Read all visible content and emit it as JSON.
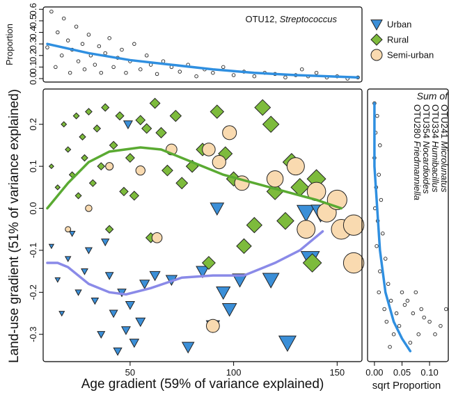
{
  "chart_data": [
    {
      "type": "scatter",
      "annotation": {
        "id": "OTU12,",
        "genus": "Streptococcus"
      },
      "ylabel": "Proportion",
      "xlim": [
        8,
        162
      ],
      "ylim": [
        -0.03,
        0.62
      ],
      "yticks": [
        {
          "value": 0,
          "label": "0.0"
        },
        0.1,
        0.2,
        0.3,
        0.4,
        0.5,
        0.6
      ],
      "series": [
        {
          "marker": "circle",
          "color": "#ffffff",
          "x": [
            10,
            12,
            14,
            15,
            17,
            18,
            20,
            21,
            22,
            24,
            25,
            27,
            28,
            30,
            31,
            33,
            35,
            36,
            38,
            40,
            42,
            44,
            46,
            48,
            50,
            52,
            55,
            58,
            60,
            63,
            66,
            70,
            74,
            78,
            82,
            86,
            90,
            95,
            100,
            105,
            110,
            115,
            120,
            125,
            130,
            133,
            136,
            140,
            145,
            150,
            155,
            160
          ],
          "values": [
            0.27,
            0.58,
            0.1,
            0.4,
            0.2,
            0.52,
            0.33,
            0.05,
            0.25,
            0.45,
            0.15,
            0.3,
            0.08,
            0.38,
            0.2,
            0.12,
            0.28,
            0.05,
            0.22,
            0.35,
            0.1,
            0.18,
            0.25,
            0.05,
            0.15,
            0.3,
            0.08,
            0.2,
            0.12,
            0.04,
            0.15,
            0.1,
            0.06,
            0.12,
            0.02,
            0.08,
            0.05,
            0.1,
            0.03,
            0.06,
            0.02,
            0.05,
            0.04,
            0.01,
            0.03,
            0.08,
            0.02,
            0.05,
            0.01,
            0.02,
            0.0,
            0.01
          ]
        }
      ],
      "lines": [
        {
          "color": "#2f8fe0",
          "x": [
            10,
            30,
            50,
            70,
            90,
            110,
            130,
            160
          ],
          "values": [
            0.3,
            0.22,
            0.16,
            0.12,
            0.08,
            0.05,
            0.03,
            0.01
          ]
        }
      ]
    },
    {
      "type": "scatter",
      "xlabel": "Age gradient (59% of variance explained)",
      "ylabel": "Land-use gradient (51% of variance explained)",
      "xlim": [
        8,
        162
      ],
      "ylim": [
        -0.365,
        0.284
      ],
      "xticks": [
        50,
        100,
        150
      ],
      "yticks": [
        -0.3,
        -0.2,
        -0.1,
        {
          "value": 0,
          "label": "0.0"
        },
        0.1,
        0.2
      ],
      "series": [
        {
          "name": "Urban",
          "marker": "triangle",
          "color": "#3b8fd8",
          "x": [
            12,
            15,
            17,
            20,
            22,
            25,
            28,
            30,
            33,
            36,
            38,
            40,
            42,
            44,
            46,
            48,
            50,
            52,
            55,
            57,
            62,
            70,
            78,
            85,
            90,
            95,
            98,
            103,
            92,
            118,
            126,
            135,
            142,
            137,
            49
          ],
          "values": [
            -0.09,
            -0.17,
            -0.25,
            -0.12,
            -0.06,
            -0.2,
            -0.15,
            -0.1,
            -0.22,
            -0.3,
            -0.08,
            -0.16,
            -0.25,
            -0.34,
            -0.2,
            -0.29,
            -0.23,
            -0.32,
            -0.27,
            -0.18,
            -0.16,
            -0.17,
            -0.33,
            -0.15,
            -0.28,
            -0.2,
            -0.24,
            -0.17,
            0.0,
            -0.17,
            -0.32,
            -0.01,
            -0.01,
            -0.12,
            0.2
          ]
        },
        {
          "name": "Rural",
          "marker": "diamond",
          "color": "#7dbb3c",
          "x": [
            12,
            15,
            18,
            20,
            22,
            24,
            25,
            27,
            28,
            30,
            32,
            34,
            36,
            38,
            40,
            42,
            45,
            47,
            50,
            52,
            55,
            58,
            60,
            62,
            65,
            68,
            72,
            75,
            80,
            85,
            88,
            92,
            96,
            100,
            105,
            110,
            114,
            118,
            120,
            125,
            128,
            132,
            135,
            138,
            140
          ],
          "values": [
            0.1,
            0.05,
            0.2,
            0.14,
            0.08,
            0.22,
            0.03,
            0.17,
            0.12,
            0.23,
            0.06,
            0.19,
            0.1,
            0.24,
            -0.05,
            0.15,
            0.22,
            0.04,
            0.12,
            0.03,
            0.21,
            0.19,
            -0.07,
            0.25,
            0.18,
            0.09,
            0.22,
            0.06,
            0.1,
            0.14,
            -0.13,
            0.23,
            0.13,
            0.07,
            -0.09,
            -0.04,
            0.24,
            0.2,
            0.04,
            -0.03,
            0.11,
            0.05,
            -0.05,
            -0.13,
            0.07
          ]
        },
        {
          "name": "Semi-urban",
          "marker": "circle",
          "color": "#f9dab0",
          "x": [
            20,
            30,
            40,
            55,
            63,
            70,
            88,
            90,
            93,
            98,
            104,
            120,
            130,
            135,
            140,
            145,
            150,
            152,
            158,
            158
          ],
          "values": [
            -0.05,
            0.0,
            0.1,
            0.09,
            -0.07,
            0.14,
            0.14,
            -0.28,
            0.11,
            0.18,
            0.06,
            0.07,
            0.1,
            -0.05,
            0.04,
            -0.01,
            0.02,
            -0.05,
            -0.04,
            -0.13
          ]
        }
      ],
      "lines": [
        {
          "color": "#5aaa32",
          "x": [
            10,
            20,
            30,
            40,
            55,
            65,
            80,
            95,
            110,
            125,
            140,
            152
          ],
          "values": [
            0.0,
            0.06,
            0.11,
            0.135,
            0.145,
            0.14,
            0.11,
            0.08,
            0.06,
            0.04,
            0.02,
            0.0
          ]
        },
        {
          "color": "#8a8ae8",
          "x": [
            10,
            15,
            20,
            30,
            40,
            48,
            60,
            75,
            90,
            105,
            120,
            132,
            143
          ],
          "values": [
            -0.13,
            -0.13,
            -0.14,
            -0.18,
            -0.2,
            -0.205,
            -0.19,
            -0.165,
            -0.16,
            -0.16,
            -0.13,
            -0.1,
            -0.055
          ]
        }
      ]
    },
    {
      "type": "scatter",
      "xlabel": "sqrt Proportion",
      "annotation": {
        "title": "Sum of",
        "otus": [
          {
            "id": "OTU241",
            "genus": "Microlunatus"
          },
          {
            "id": "OTU334",
            "genus": "Humibacillus"
          },
          {
            "id": "OTU354",
            "genus": "Nocardioides"
          },
          {
            "id": "OTU280",
            "genus": "Friedmanniella"
          }
        ]
      },
      "xlim": [
        -0.0125,
        0.134
      ],
      "ylim": [
        -0.365,
        0.284
      ],
      "xticks": [
        {
          "value": 0,
          "label": "0.00"
        },
        0.05,
        {
          "value": 0.1,
          "label": "0.10"
        }
      ],
      "series": [
        {
          "marker": "circle",
          "color": "#ffffff",
          "x": [
            0.0,
            0.005,
            0.002,
            0.01,
            0.0,
            0.008,
            0.003,
            0.012,
            0.001,
            0.006,
            0.015,
            0.004,
            0.02,
            0.01,
            0.025,
            0.008,
            0.03,
            0.018,
            0.04,
            0.022,
            0.05,
            0.035,
            0.06,
            0.028,
            0.07,
            0.045,
            0.08,
            0.055,
            0.09,
            0.065,
            0.1,
            0.075,
            0.11,
            0.085,
            0.12,
            0.13
          ],
          "values": [
            0.25,
            0.22,
            0.18,
            0.15,
            0.12,
            0.08,
            0.05,
            0.02,
            0.0,
            -0.03,
            -0.06,
            -0.09,
            -0.12,
            -0.15,
            -0.18,
            -0.2,
            -0.22,
            -0.24,
            -0.25,
            -0.27,
            -0.2,
            -0.3,
            -0.22,
            -0.33,
            -0.25,
            -0.28,
            -0.3,
            -0.23,
            -0.26,
            -0.32,
            -0.27,
            -0.2,
            -0.3,
            -0.24,
            -0.28,
            -0.24
          ]
        }
      ],
      "lines": [
        {
          "color": "#2f8fe0",
          "x": [
            0.0,
            0.0,
            0.005,
            0.01,
            0.02,
            0.035,
            0.05,
            0.065
          ],
          "values": [
            0.25,
            0.1,
            0.0,
            -0.1,
            -0.2,
            -0.27,
            -0.31,
            -0.34
          ]
        }
      ]
    }
  ]
}
